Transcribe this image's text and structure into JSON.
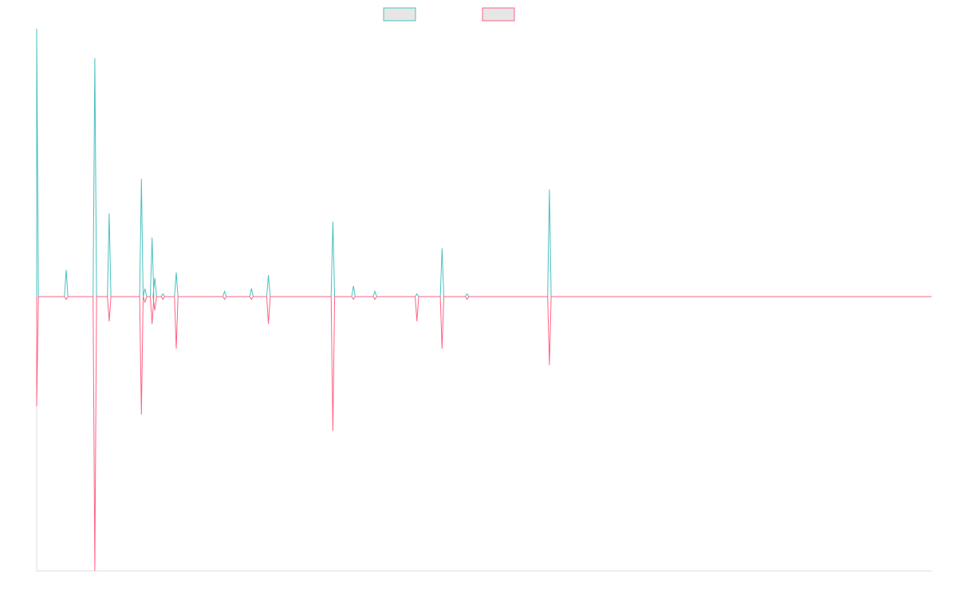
{
  "chart_data": {
    "type": "line",
    "title": "",
    "xlabel": "",
    "ylabel": "",
    "grid": false,
    "legend_position": "top",
    "ylim": [
      -1.0,
      1.0
    ],
    "colors": {
      "series_a": "#4bc0c0",
      "series_b": "#ff6384",
      "axis": "#dcdcdc"
    },
    "series": [
      {
        "key": "a",
        "color": "#4bc0c0",
        "swatch_fill": "#e6e6e6",
        "spikes": [
          {
            "x": 0,
            "y": 1.0
          },
          {
            "x": 33,
            "y": 0.1
          },
          {
            "x": 65,
            "y": 0.89
          },
          {
            "x": 81,
            "y": 0.31
          },
          {
            "x": 117,
            "y": 0.44
          },
          {
            "x": 121,
            "y": 0.03
          },
          {
            "x": 129,
            "y": 0.22
          },
          {
            "x": 132,
            "y": 0.07
          },
          {
            "x": 141,
            "y": 0.01
          },
          {
            "x": 156,
            "y": 0.09
          },
          {
            "x": 210,
            "y": 0.02
          },
          {
            "x": 240,
            "y": 0.03
          },
          {
            "x": 259,
            "y": 0.08
          },
          {
            "x": 331,
            "y": 0.28
          },
          {
            "x": 354,
            "y": 0.04
          },
          {
            "x": 378,
            "y": 0.02
          },
          {
            "x": 425,
            "y": 0.01
          },
          {
            "x": 453,
            "y": 0.18
          },
          {
            "x": 481,
            "y": 0.01
          },
          {
            "x": 573,
            "y": 0.4
          }
        ]
      },
      {
        "key": "b",
        "color": "#ff6384",
        "swatch_fill": "#e6e6e6",
        "spikes": [
          {
            "x": 0,
            "y": -0.4
          },
          {
            "x": 33,
            "y": -0.01
          },
          {
            "x": 65,
            "y": -1.0
          },
          {
            "x": 81,
            "y": -0.09
          },
          {
            "x": 117,
            "y": -0.43
          },
          {
            "x": 121,
            "y": -0.02
          },
          {
            "x": 129,
            "y": -0.1
          },
          {
            "x": 132,
            "y": -0.05
          },
          {
            "x": 141,
            "y": -0.01
          },
          {
            "x": 156,
            "y": -0.19
          },
          {
            "x": 210,
            "y": -0.01
          },
          {
            "x": 240,
            "y": -0.01
          },
          {
            "x": 259,
            "y": -0.1
          },
          {
            "x": 331,
            "y": -0.49
          },
          {
            "x": 354,
            "y": -0.01
          },
          {
            "x": 378,
            "y": -0.01
          },
          {
            "x": 425,
            "y": -0.09
          },
          {
            "x": 453,
            "y": -0.19
          },
          {
            "x": 481,
            "y": -0.01
          },
          {
            "x": 573,
            "y": -0.25
          }
        ]
      }
    ],
    "x_range": [
      0,
      1000
    ]
  }
}
